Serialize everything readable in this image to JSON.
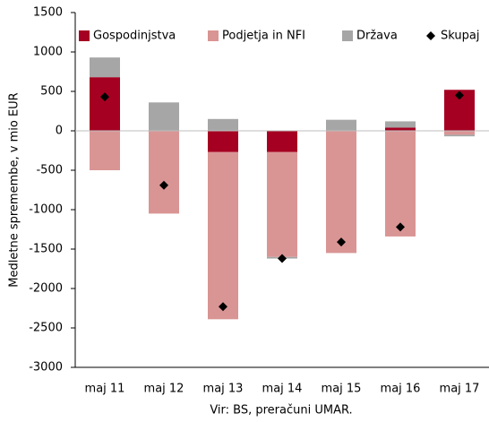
{
  "chart_data": {
    "type": "bar",
    "stacked": true,
    "y_label": "Medletne spremembe, v mio EUR",
    "x_label": "Vir: BS, preračuni UMAR.",
    "categories": [
      "maj 11",
      "maj 12",
      "maj 13",
      "maj 14",
      "maj 15",
      "maj 16",
      "maj 17"
    ],
    "series": [
      {
        "name": "Gospodinjstva",
        "color": "#a50021",
        "values": [
          680,
          0,
          -270,
          -270,
          0,
          40,
          520
        ]
      },
      {
        "name": "Podjetja in NFI",
        "color": "#d99594",
        "values": [
          -500,
          -1050,
          -2120,
          -1330,
          -1550,
          -1340,
          -50
        ]
      },
      {
        "name": "Država",
        "color": "#a6a6a6",
        "values": [
          250,
          360,
          150,
          -20,
          140,
          80,
          -20
        ]
      },
      {
        "name": "Skupaj",
        "color": "#000000",
        "type": "scatter",
        "marker": "diamond",
        "values": [
          430,
          -690,
          -2230,
          -1620,
          -1410,
          -1220,
          450
        ]
      }
    ],
    "ylim": [
      -3000,
      1500
    ],
    "yticks": [
      -3000,
      -2500,
      -2000,
      -1500,
      -1000,
      -500,
      0,
      500,
      1000,
      1500
    ],
    "legend": "top"
  }
}
